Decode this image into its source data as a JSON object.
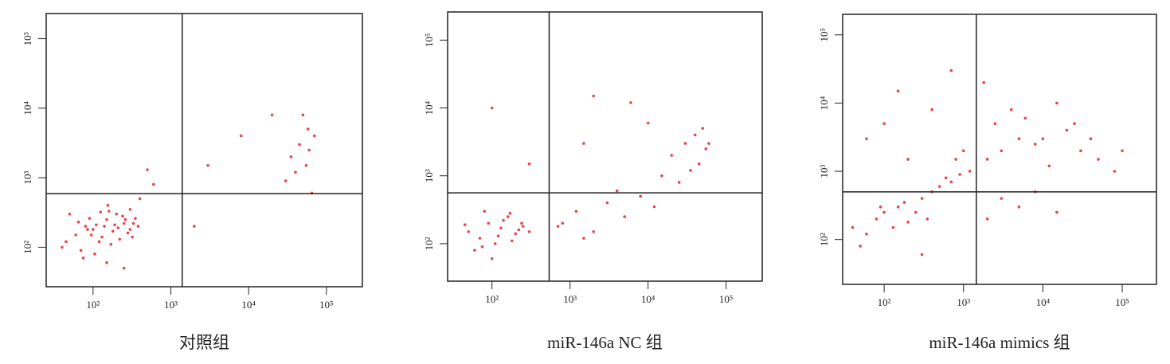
{
  "chart_data": [
    {
      "type": "scatter",
      "title": "对照组",
      "log_scale": true,
      "color": "#e3262b",
      "xlim": [
        25,
        290000
      ],
      "ylim": [
        27,
        230000
      ],
      "xticks": [
        {
          "value": 100,
          "label": "10²"
        },
        {
          "value": 1000,
          "label": "10³"
        },
        {
          "value": 10000,
          "label": "10⁴"
        },
        {
          "value": 100000,
          "label": "10⁵"
        }
      ],
      "yticks": [
        {
          "value": 100,
          "label": "10²"
        },
        {
          "value": 1000,
          "label": "10³"
        },
        {
          "value": 10000,
          "label": "10⁴"
        },
        {
          "value": 100000,
          "label": "10⁵"
        }
      ],
      "x_gate": 1400,
      "y_gate": 590,
      "x": [
        60,
        80,
        100,
        120,
        150,
        180,
        200,
        250,
        300,
        350,
        40,
        70,
        90,
        110,
        130,
        160,
        220,
        280,
        330,
        50,
        75,
        95,
        140,
        170,
        210,
        260,
        320,
        380,
        45,
        65,
        85,
        105,
        125,
        155,
        190,
        240,
        300,
        35000,
        45000,
        55000,
        60000,
        70000,
        50000,
        40000,
        65000,
        58000,
        30000,
        3000,
        8000,
        20000,
        2000,
        400,
        500,
        600,
        150,
        250
      ],
      "y": [
        150,
        200,
        180,
        120,
        250,
        170,
        300,
        220,
        180,
        260,
        100,
        90,
        260,
        210,
        140,
        330,
        130,
        160,
        220,
        300,
        70,
        150,
        200,
        110,
        190,
        250,
        140,
        200,
        120,
        230,
        180,
        80,
        320,
        400,
        210,
        280,
        350,
        2000,
        3000,
        1500,
        2500,
        4000,
        8000,
        1200,
        600,
        5000,
        900,
        1500,
        4000,
        8000,
        200,
        500,
        1300,
        800,
        60,
        50
      ]
    },
    {
      "type": "scatter",
      "title": "miR-146a NC 组",
      "log_scale": true,
      "color": "#e3262b",
      "xlim": [
        27,
        290000
      ],
      "ylim": [
        28,
        260000
      ],
      "xticks": [
        {
          "value": 100,
          "label": "10²"
        },
        {
          "value": 1000,
          "label": "10³"
        },
        {
          "value": 10000,
          "label": "10⁴"
        },
        {
          "value": 100000,
          "label": "10⁵"
        }
      ],
      "yticks": [
        {
          "value": 100,
          "label": "10²"
        },
        {
          "value": 1000,
          "label": "10³"
        },
        {
          "value": 10000,
          "label": "10⁴"
        },
        {
          "value": 100000,
          "label": "10⁵"
        }
      ],
      "x_gate": 540,
      "y_gate": 560,
      "x": [
        50,
        70,
        90,
        110,
        130,
        160,
        200,
        250,
        60,
        80,
        100,
        140,
        180,
        220,
        45,
        75,
        120,
        170,
        240,
        300,
        800,
        1200,
        2000,
        3000,
        5000,
        8000,
        12000,
        1500,
        4000,
        700,
        20000,
        30000,
        40000,
        50000,
        60000,
        45000,
        35000,
        25000,
        55000,
        15000,
        2000,
        6000,
        100,
        300,
        10000,
        1500
      ],
      "y": [
        150,
        120,
        200,
        100,
        170,
        250,
        140,
        180,
        80,
        300,
        60,
        220,
        110,
        160,
        190,
        90,
        130,
        280,
        200,
        150,
        200,
        300,
        150,
        400,
        250,
        500,
        350,
        120,
        600,
        180,
        2000,
        3000,
        4000,
        5000,
        3000,
        1500,
        1200,
        800,
        2500,
        1000,
        15000,
        12000,
        10000,
        1500,
        6000,
        3000
      ]
    },
    {
      "type": "scatter",
      "title": "miR-146a mimics 组",
      "log_scale": true,
      "color": "#e3262b",
      "xlim": [
        30,
        270000
      ],
      "ylim": [
        22,
        200000
      ],
      "xticks": [
        {
          "value": 100,
          "label": "10²"
        },
        {
          "value": 1000,
          "label": "10³"
        },
        {
          "value": 10000,
          "label": "10⁴"
        },
        {
          "value": 100000,
          "label": "10⁵"
        }
      ],
      "yticks": [
        {
          "value": 100,
          "label": "10²"
        },
        {
          "value": 1000,
          "label": "10³"
        },
        {
          "value": 10000,
          "label": "10⁴"
        },
        {
          "value": 100000,
          "label": "10⁵"
        }
      ],
      "x_gate": 1450,
      "y_gate": 500,
      "x": [
        40,
        60,
        80,
        100,
        150,
        200,
        300,
        400,
        500,
        700,
        900,
        1200,
        50,
        90,
        130,
        180,
        250,
        350,
        600,
        800,
        1000,
        2000,
        3000,
        5000,
        8000,
        12000,
        20000,
        30000,
        50000,
        80000,
        2500,
        4000,
        6000,
        10000,
        15000,
        25000,
        40000,
        3000,
        5000,
        8000,
        15000,
        2000,
        60,
        100,
        200,
        400,
        150,
        100000,
        1800,
        700,
        300
      ],
      "y": [
        150,
        120,
        200,
        250,
        300,
        180,
        400,
        500,
        600,
        700,
        900,
        1000,
        80,
        300,
        150,
        350,
        250,
        200,
        800,
        1500,
        2000,
        1500,
        2000,
        3000,
        2500,
        1200,
        4000,
        2000,
        1500,
        1000,
        5000,
        8000,
        6000,
        3000,
        10000,
        5000,
        3000,
        400,
        300,
        500,
        250,
        200,
        3000,
        5000,
        1500,
        8000,
        15000,
        2000,
        20000,
        30000,
        60
      ]
    }
  ]
}
